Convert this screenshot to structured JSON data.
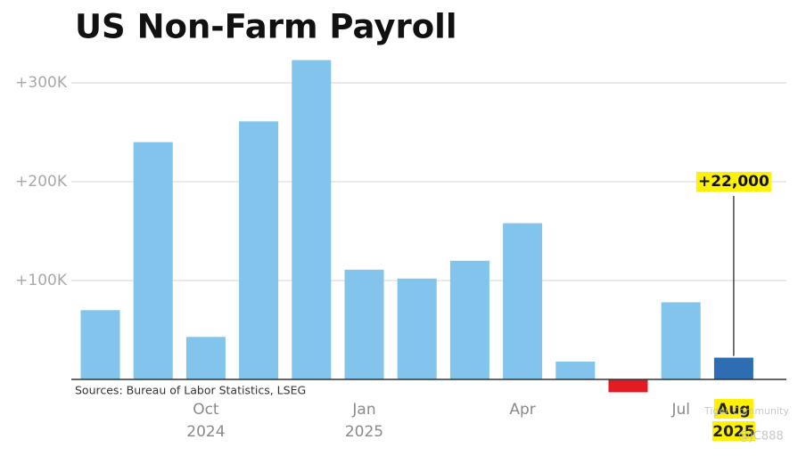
{
  "chart_data": {
    "type": "bar",
    "title": "US Non-Farm Payroll",
    "source": "Sources: Bureau of Labor Statistics, LSEG",
    "watermark": [
      "Tiger Community",
      "@JC888"
    ],
    "categories": [
      null,
      null,
      "Oct",
      null,
      null,
      "Jan",
      null,
      null,
      "Apr",
      null,
      null,
      "Jul",
      "Aug"
    ],
    "years": [
      null,
      null,
      "2024",
      null,
      null,
      "2025",
      null,
      null,
      null,
      null,
      null,
      null,
      "2025"
    ],
    "values": [
      70000,
      240000,
      43000,
      261000,
      323000,
      111000,
      102000,
      120000,
      158000,
      18000,
      -13000,
      78000,
      22000
    ],
    "value_labels": [
      null,
      null,
      null,
      null,
      null,
      null,
      null,
      null,
      null,
      null,
      null,
      null,
      "+22,000"
    ],
    "colors": [
      "#82c4ec",
      "#82c4ec",
      "#82c4ec",
      "#82c4ec",
      "#82c4ec",
      "#82c4ec",
      "#82c4ec",
      "#82c4ec",
      "#82c4ec",
      "#82c4ec",
      "#e31b23",
      "#82c4ec",
      "#2f6db3"
    ],
    "highlight_color": "#fff200",
    "ylim": [
      -15000,
      325000
    ],
    "yticks": [
      {
        "value": 100000,
        "label": "+100K"
      },
      {
        "value": 200000,
        "label": "+200K"
      },
      {
        "value": 300000,
        "label": "+300K"
      }
    ],
    "grid": true
  }
}
